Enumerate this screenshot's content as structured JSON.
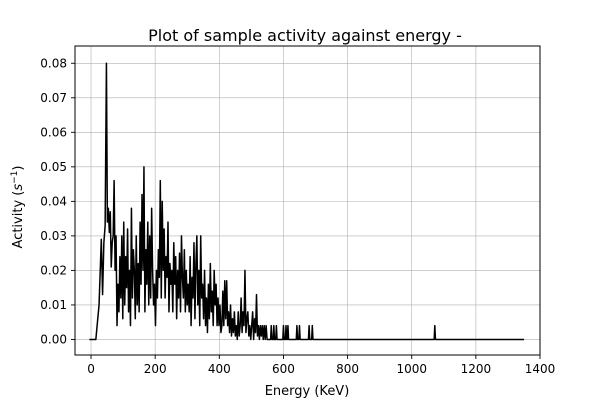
{
  "chart_data": {
    "type": "line",
    "title": "Plot of sample activity against energy -",
    "xlabel": "Energy (KeV)",
    "ylabel_main": "Activity (",
    "ylabel_var": "s",
    "ylabel_sup": "−1",
    "ylabel_end": ")",
    "xlim": [
      -50,
      1400
    ],
    "ylim": [
      -0.0045,
      0.085
    ],
    "xticks": [
      0,
      200,
      400,
      600,
      800,
      1000,
      1200,
      1400
    ],
    "yticks": [
      0.0,
      0.01,
      0.02,
      0.03,
      0.04,
      0.05,
      0.06,
      0.07,
      0.08
    ],
    "xtick_labels": [
      "0",
      "200",
      "400",
      "600",
      "800",
      "1000",
      "1200",
      "1400"
    ],
    "ytick_labels": [
      "0.00",
      "0.01",
      "0.02",
      "0.03",
      "0.04",
      "0.05",
      "0.06",
      "0.07",
      "0.08"
    ],
    "grid": true,
    "series": [
      {
        "name": "activity",
        "color": "#000000",
        "points": [
          [
            -5,
            0
          ],
          [
            15,
            0
          ],
          [
            25,
            0.01
          ],
          [
            32,
            0.029
          ],
          [
            36,
            0.013
          ],
          [
            40,
            0.028
          ],
          [
            44,
            0.033
          ],
          [
            48,
            0.08
          ],
          [
            51,
            0.034
          ],
          [
            54,
            0.038
          ],
          [
            57,
            0.031
          ],
          [
            60,
            0.037
          ],
          [
            63,
            0.021
          ],
          [
            66,
            0.028
          ],
          [
            69,
            0.03
          ],
          [
            72,
            0.046
          ],
          [
            75,
            0.02
          ],
          [
            78,
            0.03
          ],
          [
            81,
            0.004
          ],
          [
            84,
            0.016
          ],
          [
            87,
            0.008
          ],
          [
            90,
            0.024
          ],
          [
            93,
            0.012
          ],
          [
            96,
            0.03
          ],
          [
            99,
            0.006
          ],
          [
            102,
            0.034
          ],
          [
            105,
            0.01
          ],
          [
            108,
            0.024
          ],
          [
            111,
            0.015
          ],
          [
            114,
            0.032
          ],
          [
            117,
            0.008
          ],
          [
            120,
            0.02
          ],
          [
            123,
            0.004
          ],
          [
            126,
            0.038
          ],
          [
            129,
            0.012
          ],
          [
            132,
            0.026
          ],
          [
            135,
            0.02
          ],
          [
            138,
            0.006
          ],
          [
            141,
            0.03
          ],
          [
            144,
            0.01
          ],
          [
            147,
            0.022
          ],
          [
            150,
            0.008
          ],
          [
            153,
            0.034
          ],
          [
            156,
            0.016
          ],
          [
            159,
            0.042
          ],
          [
            162,
            0.02
          ],
          [
            165,
            0.05
          ],
          [
            168,
            0.008
          ],
          [
            171,
            0.026
          ],
          [
            174,
            0.016
          ],
          [
            177,
            0.034
          ],
          [
            180,
            0.01
          ],
          [
            183,
            0.03
          ],
          [
            186,
            0.012
          ],
          [
            189,
            0.038
          ],
          [
            192,
            0.02
          ],
          [
            195,
            0.01
          ],
          [
            198,
            0.016
          ],
          [
            201,
            0.004
          ],
          [
            204,
            0.02
          ],
          [
            207,
            0.012
          ],
          [
            210,
            0.026
          ],
          [
            213,
            0.018
          ],
          [
            216,
            0.046
          ],
          [
            219,
            0.012
          ],
          [
            222,
            0.04
          ],
          [
            225,
            0.02
          ],
          [
            228,
            0.032
          ],
          [
            231,
            0.012
          ],
          [
            234,
            0.024
          ],
          [
            237,
            0.018
          ],
          [
            240,
            0.034
          ],
          [
            243,
            0.008
          ],
          [
            246,
            0.022
          ],
          [
            249,
            0.016
          ],
          [
            252,
            0.02
          ],
          [
            255,
            0.008
          ],
          [
            258,
            0.028
          ],
          [
            261,
            0.016
          ],
          [
            264,
            0.024
          ],
          [
            267,
            0.006
          ],
          [
            270,
            0.02
          ],
          [
            273,
            0.012
          ],
          [
            276,
            0.025
          ],
          [
            279,
            0.008
          ],
          [
            282,
            0.03
          ],
          [
            285,
            0.018
          ],
          [
            288,
            0.012
          ],
          [
            291,
            0.026
          ],
          [
            294,
            0.008
          ],
          [
            297,
            0.02
          ],
          [
            300,
            0.01
          ],
          [
            303,
            0.016
          ],
          [
            306,
            0.008
          ],
          [
            309,
            0.024
          ],
          [
            312,
            0.004
          ],
          [
            315,
            0.018
          ],
          [
            318,
            0.012
          ],
          [
            321,
            0.028
          ],
          [
            324,
            0.006
          ],
          [
            327,
            0.022
          ],
          [
            330,
            0.03
          ],
          [
            333,
            0.01
          ],
          [
            336,
            0.02
          ],
          [
            339,
            0.004
          ],
          [
            342,
            0.03
          ],
          [
            345,
            0.012
          ],
          [
            348,
            0.016
          ],
          [
            351,
            0.006
          ],
          [
            354,
            0.02
          ],
          [
            357,
            0.004
          ],
          [
            360,
            0.012
          ],
          [
            363,
            0.002
          ],
          [
            366,
            0.016
          ],
          [
            369,
            0.006
          ],
          [
            372,
            0.022
          ],
          [
            375,
            0.008
          ],
          [
            378,
            0.014
          ],
          [
            381,
            0.004
          ],
          [
            384,
            0.02
          ],
          [
            387,
            0.01
          ],
          [
            390,
            0.016
          ],
          [
            393,
            0.004
          ],
          [
            396,
            0.012
          ],
          [
            399,
            0.004
          ],
          [
            402,
            0.01
          ],
          [
            405,
            0.002
          ],
          [
            408,
            0.004
          ],
          [
            411,
            0.014
          ],
          [
            414,
            0.004
          ],
          [
            417,
            0.017
          ],
          [
            420,
            0.006
          ],
          [
            423,
            0.017
          ],
          [
            426,
            0.004
          ],
          [
            429,
            0.008
          ],
          [
            432,
            0.002
          ],
          [
            435,
            0.01
          ],
          [
            438,
            0.001
          ],
          [
            441,
            0.006
          ],
          [
            444,
            0.002
          ],
          [
            447,
            0.008
          ],
          [
            450,
            0.001
          ],
          [
            453,
            0.004
          ],
          [
            456,
            0
          ],
          [
            459,
            0.008
          ],
          [
            462,
            0.001
          ],
          [
            465,
            0.004
          ],
          [
            468,
            0.012
          ],
          [
            471,
            0.002
          ],
          [
            474,
            0.008
          ],
          [
            477,
            0.004
          ],
          [
            480,
            0.02
          ],
          [
            483,
            0.002
          ],
          [
            486,
            0.006
          ],
          [
            489,
            0.008
          ],
          [
            492,
            0.001
          ],
          [
            495,
            0.004
          ],
          [
            498,
            0
          ],
          [
            501,
            0.004
          ],
          [
            504,
            0.008
          ],
          [
            507,
            0
          ],
          [
            510,
            0.006
          ],
          [
            513,
            0.002
          ],
          [
            516,
            0.013
          ],
          [
            519,
            0.001
          ],
          [
            522,
            0.004
          ],
          [
            525,
            0
          ],
          [
            528,
            0.004
          ],
          [
            531,
            0.001
          ],
          [
            534,
            0.004
          ],
          [
            537,
            0
          ],
          [
            540,
            0.004
          ],
          [
            543,
            0
          ],
          [
            546,
            0.004
          ],
          [
            549,
            0
          ],
          [
            560,
            0
          ],
          [
            562,
            0.004
          ],
          [
            564,
            0
          ],
          [
            568,
            0
          ],
          [
            570,
            0.004
          ],
          [
            572,
            0
          ],
          [
            576,
            0
          ],
          [
            578,
            0.004
          ],
          [
            580,
            0
          ],
          [
            598,
            0
          ],
          [
            600,
            0.004
          ],
          [
            602,
            0
          ],
          [
            606,
            0
          ],
          [
            608,
            0.004
          ],
          [
            610,
            0
          ],
          [
            612,
            0
          ],
          [
            614,
            0.004
          ],
          [
            616,
            0
          ],
          [
            640,
            0
          ],
          [
            642,
            0.004
          ],
          [
            644,
            0
          ],
          [
            648,
            0
          ],
          [
            650,
            0.004
          ],
          [
            652,
            0
          ],
          [
            678,
            0
          ],
          [
            680,
            0.004
          ],
          [
            682,
            0
          ],
          [
            688,
            0
          ],
          [
            690,
            0.004
          ],
          [
            692,
            0
          ],
          [
            1070,
            0
          ],
          [
            1072,
            0.004
          ],
          [
            1074,
            0
          ],
          [
            1350,
            0
          ]
        ]
      }
    ]
  }
}
